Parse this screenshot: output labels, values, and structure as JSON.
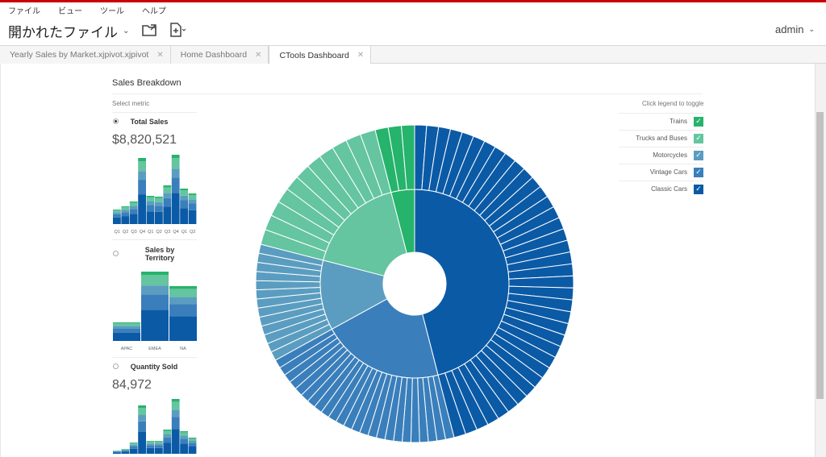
{
  "menu": [
    "ファイル",
    "ビュー",
    "ツール",
    "ヘルプ"
  ],
  "toolbar": {
    "title": "開かれたファイル",
    "user": "admin"
  },
  "tabs": [
    {
      "label": "Yearly Sales by Market.xjpivot.xjpivot",
      "active": false
    },
    {
      "label": "Home Dashboard",
      "active": false
    },
    {
      "label": "CTools Dashboard",
      "active": true
    }
  ],
  "panel": {
    "title": "Sales Breakdown",
    "select_metric": "Select metric",
    "legend_hint": "Click legend to toggle"
  },
  "metrics": [
    {
      "label": "Total Sales",
      "value": "$8,820,521",
      "selected": true
    },
    {
      "label": "Sales by Territory",
      "value": "",
      "selected": false
    },
    {
      "label": "Quantity Sold",
      "value": "84,972",
      "selected": false
    }
  ],
  "quarter_ticks": [
    "Q1",
    "Q2",
    "Q3",
    "Q4",
    "Q1",
    "Q2",
    "Q3",
    "Q4",
    "Q1",
    "Q2"
  ],
  "territory_ticks": [
    "APAC",
    "EMEA",
    "NA"
  ],
  "legend": [
    {
      "label": "Trains",
      "color": "#26b36b"
    },
    {
      "label": "Trucks and Buses",
      "color": "#64c5a0"
    },
    {
      "label": "Motorcycles",
      "color": "#5b9dc0"
    },
    {
      "label": "Vintage Cars",
      "color": "#3a7fbb"
    },
    {
      "label": "Classic Cars",
      "color": "#0b5aa6"
    }
  ],
  "chart_data": {
    "type": "sunburst",
    "inner_ring": [
      {
        "name": "Classic Cars",
        "share": 0.46,
        "color": "#0b5aa6",
        "children": 38
      },
      {
        "name": "Vintage Cars",
        "share": 0.21,
        "color": "#3a7fbb",
        "children": 24
      },
      {
        "name": "Motorcycles",
        "share": 0.12,
        "color": "#5b9dc0",
        "children": 13
      },
      {
        "name": "Trucks and Buses",
        "share": 0.17,
        "color": "#64c5a0",
        "children": 11
      },
      {
        "name": "Trains",
        "share": 0.04,
        "color": "#26b36b",
        "children": 3
      }
    ]
  }
}
